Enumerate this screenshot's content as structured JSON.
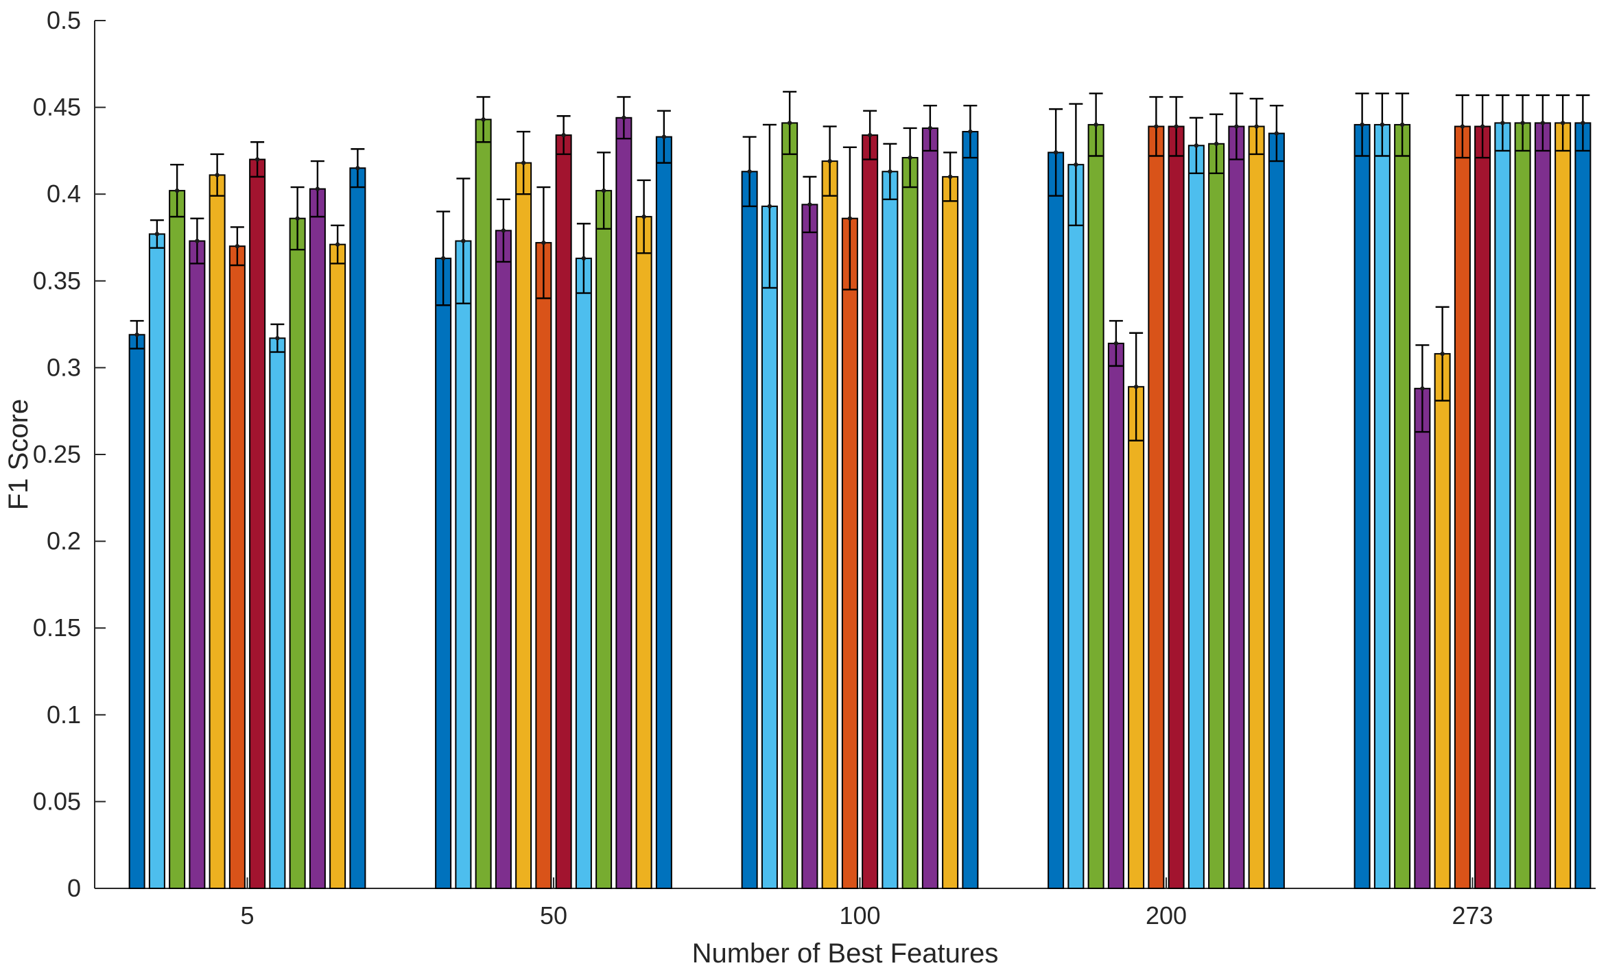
{
  "figure": {
    "background": "#ffffff",
    "axis_color": "#262626",
    "bar_edge_color": "#000000",
    "error_bar_color": "#000000"
  },
  "chart_data": {
    "type": "bar",
    "title": "",
    "xlabel": "Number of Best Features",
    "ylabel": "F1 Score",
    "categories": [
      "5",
      "50",
      "100",
      "200",
      "273"
    ],
    "ylim": [
      0,
      0.5
    ],
    "ytick_step": 0.05,
    "ytick_labels": [
      "0",
      "0.05",
      "0.1",
      "0.15",
      "0.2",
      "0.25",
      "0.3",
      "0.35",
      "0.4",
      "0.45",
      "0.5"
    ],
    "grid": false,
    "legend": "none",
    "error_bars": true,
    "bars_per_group": 12,
    "series": [
      {
        "color": "#0072BD",
        "values": [
          0.319,
          0.363,
          0.413,
          0.424,
          0.44
        ],
        "errors": [
          0.008,
          0.027,
          0.02,
          0.025,
          0.018
        ]
      },
      {
        "color": "#4DBEEE",
        "values": [
          0.377,
          0.373,
          0.393,
          0.417,
          0.44
        ],
        "errors": [
          0.008,
          0.036,
          0.047,
          0.035,
          0.018
        ]
      },
      {
        "color": "#77AC30",
        "values": [
          0.402,
          0.443,
          0.441,
          0.44,
          0.44
        ],
        "errors": [
          0.015,
          0.013,
          0.018,
          0.018,
          0.018
        ]
      },
      {
        "color": "#7E2F8E",
        "values": [
          0.373,
          0.379,
          0.394,
          0.314,
          0.288
        ],
        "errors": [
          0.013,
          0.018,
          0.016,
          0.013,
          0.025
        ]
      },
      {
        "color": "#EDB120",
        "values": [
          0.411,
          0.418,
          0.419,
          0.289,
          0.308
        ],
        "errors": [
          0.012,
          0.018,
          0.02,
          0.031,
          0.027
        ]
      },
      {
        "color": "#D95319",
        "values": [
          0.37,
          0.372,
          0.386,
          0.439,
          0.439
        ],
        "errors": [
          0.011,
          0.032,
          0.041,
          0.017,
          0.018
        ]
      },
      {
        "color": "#A2142F",
        "values": [
          0.42,
          0.434,
          0.434,
          0.439,
          0.439
        ],
        "errors": [
          0.01,
          0.011,
          0.014,
          0.017,
          0.018
        ]
      },
      {
        "color": "#4DBEEE",
        "values": [
          0.317,
          0.363,
          0.413,
          0.428,
          0.441
        ],
        "errors": [
          0.008,
          0.02,
          0.016,
          0.016,
          0.016
        ]
      },
      {
        "color": "#77AC30",
        "values": [
          0.386,
          0.402,
          0.421,
          0.429,
          0.441
        ],
        "errors": [
          0.018,
          0.022,
          0.017,
          0.017,
          0.016
        ]
      },
      {
        "color": "#7E2F8E",
        "values": [
          0.403,
          0.444,
          0.438,
          0.439,
          0.441
        ],
        "errors": [
          0.016,
          0.012,
          0.013,
          0.019,
          0.016
        ]
      },
      {
        "color": "#EDB120",
        "values": [
          0.371,
          0.387,
          0.41,
          0.439,
          0.441
        ],
        "errors": [
          0.011,
          0.021,
          0.014,
          0.016,
          0.016
        ]
      },
      {
        "color": "#0072BD",
        "values": [
          0.415,
          0.433,
          0.436,
          0.435,
          0.441
        ],
        "errors": [
          0.011,
          0.015,
          0.015,
          0.016,
          0.016
        ]
      }
    ]
  }
}
